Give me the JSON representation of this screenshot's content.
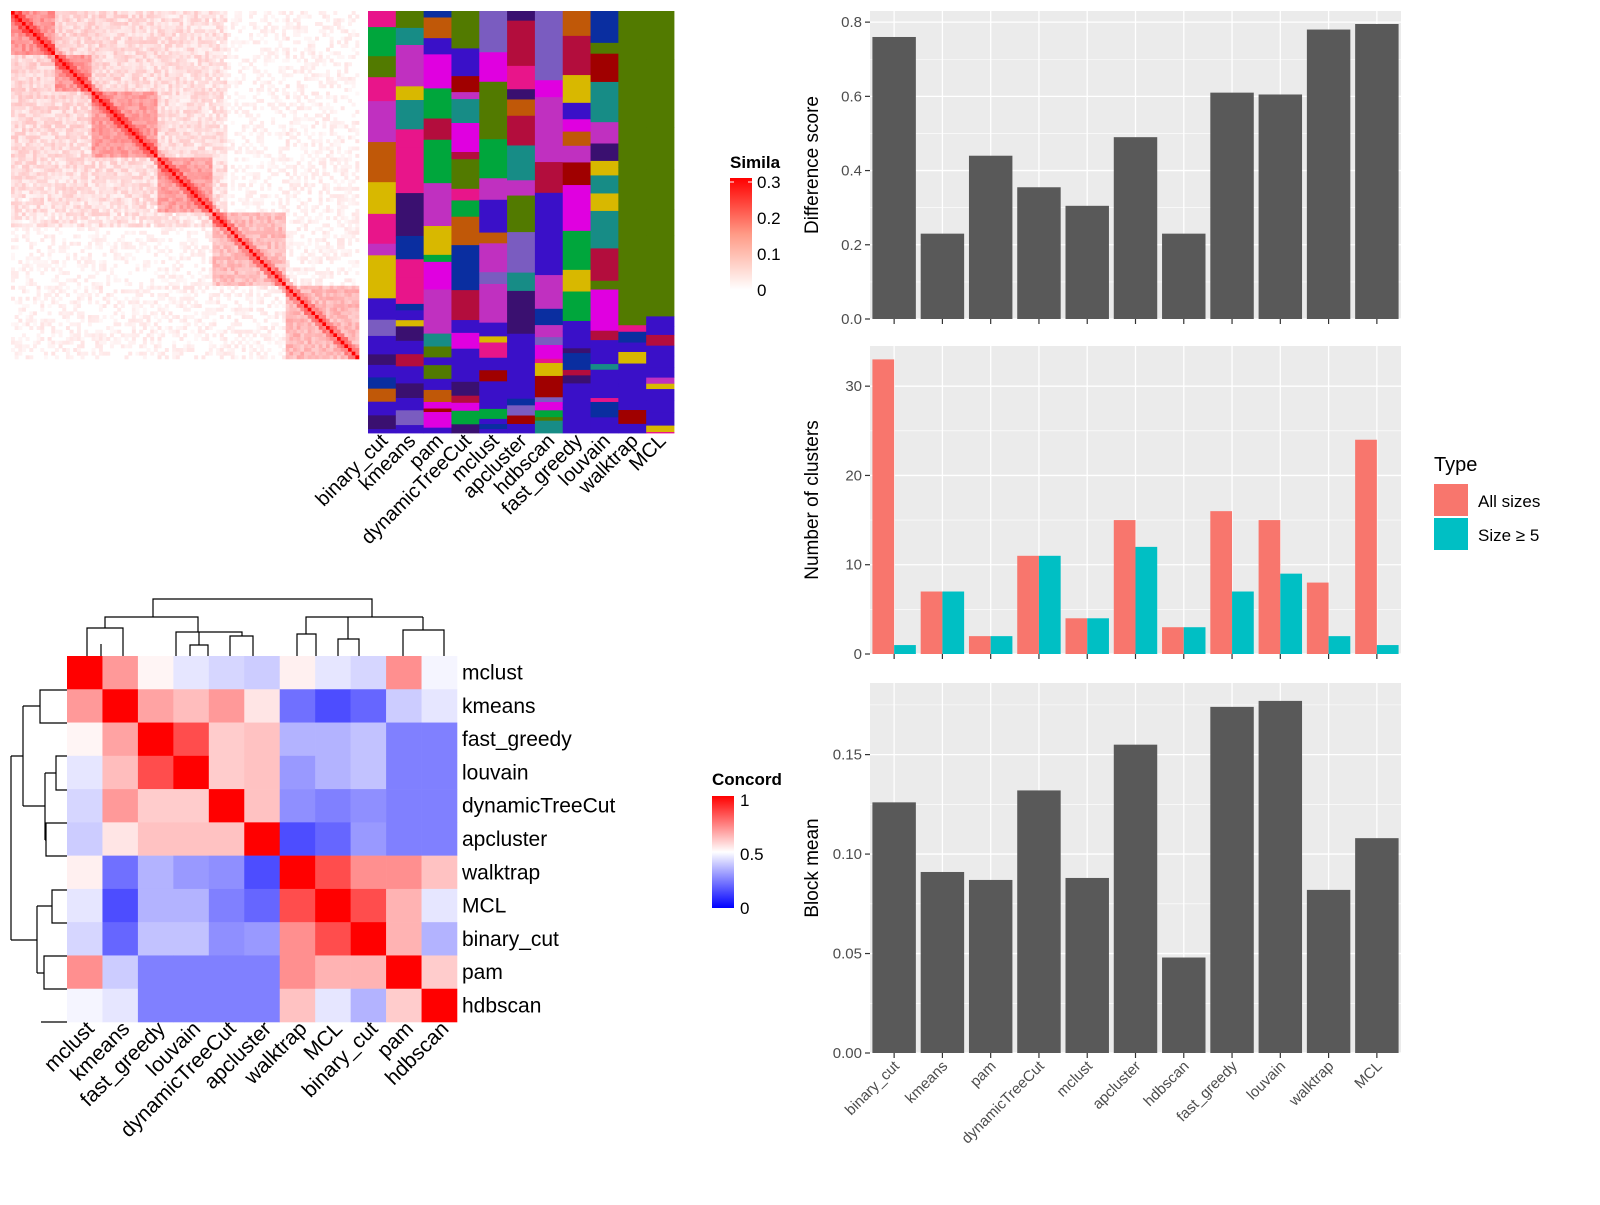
{
  "colors": {
    "panel_bg": "#ebebeb",
    "grid": "#ffffff",
    "bar_fill": "#595959",
    "all_sizes": "#f8766d",
    "size_ge_5": "#00bfc4",
    "heat_high": "#ff0000",
    "heat_mid": "#ffffff",
    "heat_low": "#0000ff"
  },
  "similarity_heatmap": {
    "legend_title": "Simila",
    "legend_ticks": [
      "0.3",
      "0.2",
      "0.1",
      "0"
    ],
    "methods": [
      "binary_cut",
      "kmeans",
      "pam",
      "dynamicTreeCut",
      "mclust",
      "apcluster",
      "hdbscan",
      "fast_greedy",
      "louvain",
      "walktrap",
      "MCL"
    ],
    "label_colors": [
      "#527a00",
      "#e8158a",
      "#7a5cc0",
      "#00a63c",
      "#178c86",
      "#b30d3d",
      "#c05808",
      "#e000e0",
      "#3a10c8",
      "#0a2ea0",
      "#a00000",
      "#3a1070",
      "#d8b800",
      "#c030c0"
    ]
  },
  "concordance": {
    "legend_title": "Concord",
    "legend_ticks": [
      "1",
      "0.5",
      "0"
    ],
    "methods": [
      "mclust",
      "kmeans",
      "fast_greedy",
      "louvain",
      "dynamicTreeCut",
      "apcluster",
      "walktrap",
      "MCL",
      "binary_cut",
      "pam",
      "hdbscan"
    ],
    "matrix": [
      [
        1.0,
        0.7,
        0.52,
        0.45,
        0.42,
        0.4,
        0.53,
        0.45,
        0.42,
        0.72,
        0.48
      ],
      [
        0.7,
        1.0,
        0.68,
        0.63,
        0.7,
        0.55,
        0.22,
        0.15,
        0.2,
        0.4,
        0.45
      ],
      [
        0.52,
        0.68,
        1.0,
        0.85,
        0.6,
        0.62,
        0.35,
        0.35,
        0.38,
        0.25,
        0.25
      ],
      [
        0.45,
        0.63,
        0.85,
        1.0,
        0.6,
        0.62,
        0.3,
        0.35,
        0.38,
        0.25,
        0.25
      ],
      [
        0.42,
        0.7,
        0.6,
        0.6,
        1.0,
        0.62,
        0.28,
        0.25,
        0.28,
        0.25,
        0.25
      ],
      [
        0.4,
        0.55,
        0.62,
        0.62,
        0.62,
        1.0,
        0.15,
        0.2,
        0.3,
        0.25,
        0.25
      ],
      [
        0.53,
        0.22,
        0.35,
        0.3,
        0.28,
        0.15,
        1.0,
        0.85,
        0.72,
        0.72,
        0.62
      ],
      [
        0.45,
        0.15,
        0.35,
        0.35,
        0.25,
        0.2,
        0.85,
        1.0,
        0.85,
        0.65,
        0.45
      ],
      [
        0.42,
        0.2,
        0.38,
        0.38,
        0.28,
        0.3,
        0.72,
        0.85,
        1.0,
        0.65,
        0.35
      ],
      [
        0.72,
        0.4,
        0.25,
        0.25,
        0.25,
        0.25,
        0.72,
        0.65,
        0.65,
        1.0,
        0.6
      ],
      [
        0.48,
        0.45,
        0.25,
        0.25,
        0.25,
        0.25,
        0.62,
        0.45,
        0.35,
        0.6,
        1.0
      ]
    ]
  },
  "chart_data": [
    {
      "type": "bar",
      "categories": [
        "binary_cut",
        "kmeans",
        "pam",
        "dynamicTreeCut",
        "mclust",
        "apcluster",
        "hdbscan",
        "fast_greedy",
        "louvain",
        "walktrap",
        "MCL"
      ],
      "values": [
        0.76,
        0.23,
        0.44,
        0.355,
        0.305,
        0.49,
        0.23,
        0.61,
        0.605,
        0.78,
        0.795
      ],
      "ylabel": "Difference score",
      "ylim": [
        0,
        0.83
      ],
      "yticks": [
        "0.0",
        "0.2",
        "0.4",
        "0.6",
        "0.8"
      ],
      "grid": true
    },
    {
      "type": "bar",
      "categories": [
        "binary_cut",
        "kmeans",
        "pam",
        "dynamicTreeCut",
        "mclust",
        "apcluster",
        "hdbscan",
        "fast_greedy",
        "louvain",
        "walktrap",
        "MCL"
      ],
      "series": [
        {
          "name": "All sizes",
          "values": [
            33,
            7,
            2,
            11,
            4,
            15,
            3,
            16,
            15,
            8,
            24
          ]
        },
        {
          "name": "Size ≥ 5",
          "values": [
            1,
            7,
            2,
            11,
            4,
            12,
            3,
            7,
            9,
            2,
            1
          ]
        }
      ],
      "ylabel": "Number of clusters",
      "ylim": [
        0,
        34.5
      ],
      "yticks": [
        "0",
        "10",
        "20",
        "30"
      ],
      "legend_title": "Type",
      "legend_position": "right",
      "grid": true
    },
    {
      "type": "bar",
      "categories": [
        "binary_cut",
        "kmeans",
        "pam",
        "dynamicTreeCut",
        "mclust",
        "apcluster",
        "hdbscan",
        "fast_greedy",
        "louvain",
        "walktrap",
        "MCL"
      ],
      "values": [
        0.126,
        0.091,
        0.087,
        0.132,
        0.088,
        0.155,
        0.048,
        0.174,
        0.177,
        0.082,
        0.108
      ],
      "ylabel": "Block mean",
      "ylim": [
        0,
        0.186
      ],
      "yticks": [
        "0.00",
        "0.05",
        "0.10",
        "0.15"
      ],
      "grid": true
    }
  ]
}
